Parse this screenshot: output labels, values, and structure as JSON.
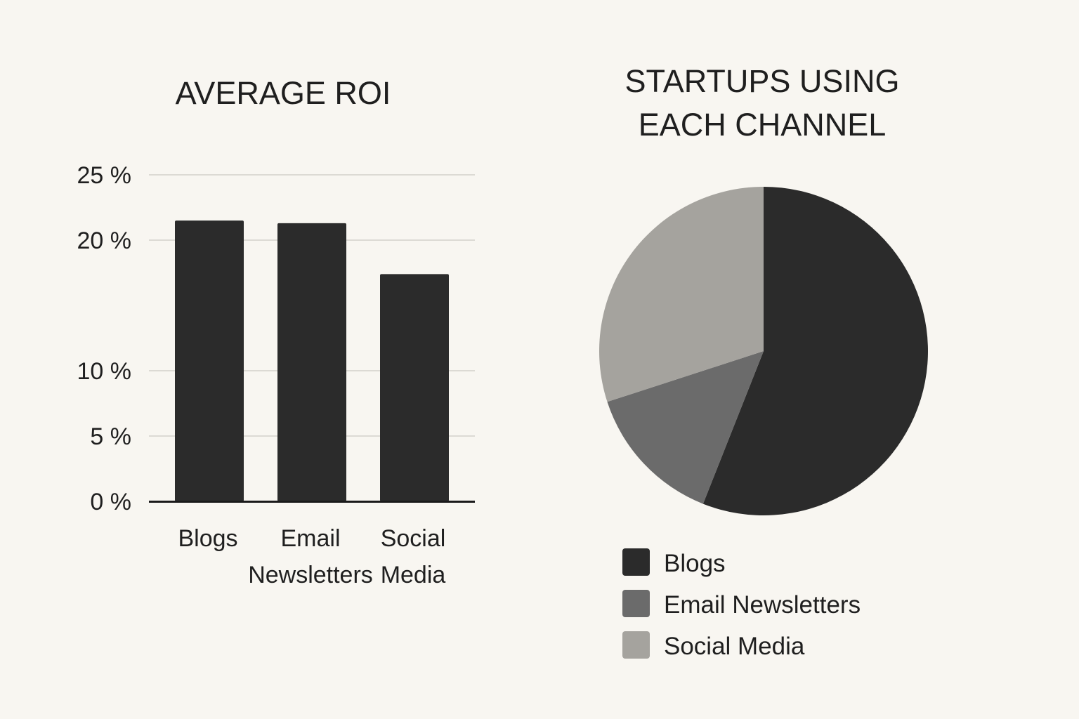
{
  "chart_data": [
    {
      "type": "bar",
      "title": "AVERAGE ROI",
      "categories": [
        "Blogs",
        "Email Newsletters",
        "Social Media"
      ],
      "category_label_lines": [
        [
          "Blogs"
        ],
        [
          "Email",
          "Newsletters"
        ],
        [
          "Social",
          "Media"
        ]
      ],
      "values": [
        21.5,
        21.3,
        17.4
      ],
      "yticks": [
        0,
        5,
        10,
        20,
        25
      ],
      "ytick_labels": [
        "0 %",
        "5 %",
        "10 %",
        "20 %",
        "25 %"
      ],
      "ylim": [
        0,
        25
      ],
      "xlabel": "",
      "ylabel": "",
      "grid": true,
      "bar_color": "#2b2b2b"
    },
    {
      "type": "pie",
      "title": "STARTUPS USING EACH CHANNEL",
      "title_lines": [
        "STARTUPS USING",
        "EACH CHANNEL"
      ],
      "labels": [
        "Blogs",
        "Email Newsletters",
        "Social Media"
      ],
      "values": [
        56,
        14,
        30
      ],
      "colors": [
        "#2b2b2b",
        "#6b6b6b",
        "#a5a39e"
      ],
      "legend": "bottom",
      "start_angle_deg": 0,
      "direction": "clockwise"
    }
  ]
}
